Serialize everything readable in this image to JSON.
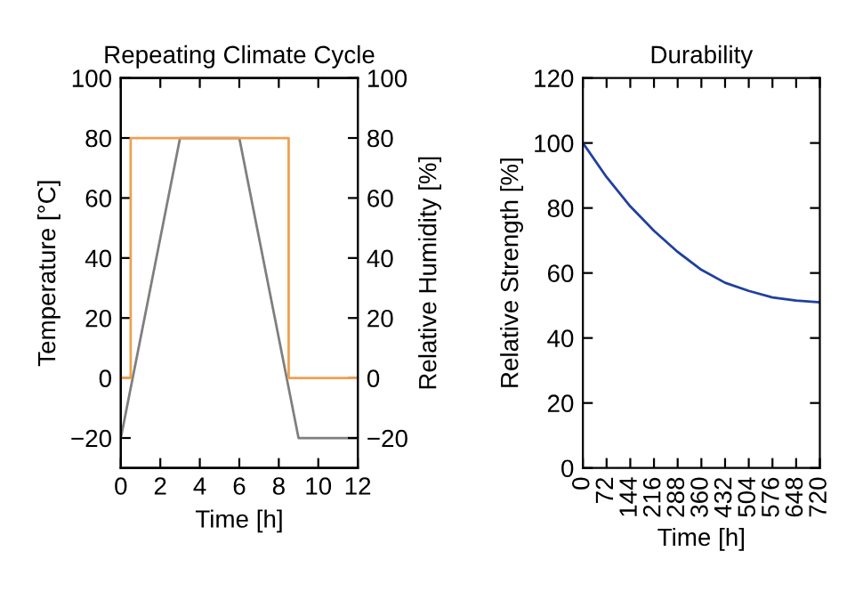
{
  "chart_data": [
    {
      "type": "line",
      "title": "Repeating Climate Cycle",
      "xlabel": "Time [h]",
      "ylabel": "Temperature [°C]",
      "y2label": "Relative Humidity [%]",
      "xlim": [
        0,
        12
      ],
      "xticks": [
        0,
        2,
        4,
        6,
        8,
        10,
        12
      ],
      "ylim": [
        -30,
        100
      ],
      "yticks": [
        -20,
        0,
        20,
        40,
        60,
        80,
        100
      ],
      "y2lim": [
        -30,
        100
      ],
      "y2ticks": [
        -20,
        0,
        20,
        40,
        60,
        80,
        100
      ],
      "grid": false,
      "legend": false,
      "series": [
        {
          "color": "#7f7f7f",
          "x": [
            0,
            3,
            6,
            9,
            12
          ],
          "values": [
            -20,
            80,
            80,
            -20,
            -20
          ]
        },
        {
          "color": "#f0a050",
          "axis": "y2",
          "x": [
            0,
            0.5,
            0.5,
            8.5,
            8.5,
            12
          ],
          "values": [
            0,
            0,
            80,
            80,
            0,
            0
          ]
        }
      ]
    },
    {
      "type": "line",
      "title": "Durability",
      "xlabel": "Time [h]",
      "ylabel": "Relative Strength [%]",
      "xlim": [
        0,
        720
      ],
      "xticks": [
        0,
        72,
        144,
        216,
        288,
        360,
        432,
        504,
        576,
        648,
        720
      ],
      "ylim": [
        0,
        120
      ],
      "yticks": [
        0,
        20,
        40,
        60,
        80,
        100,
        120
      ],
      "grid": false,
      "legend": false,
      "series": [
        {
          "color": "#2040a0",
          "x": [
            0,
            72,
            144,
            216,
            288,
            360,
            432,
            504,
            576,
            648,
            720
          ],
          "values": [
            100,
            89.5,
            80.5,
            73,
            66.5,
            61,
            57,
            54.5,
            52.5,
            51.5,
            51
          ]
        }
      ]
    }
  ]
}
